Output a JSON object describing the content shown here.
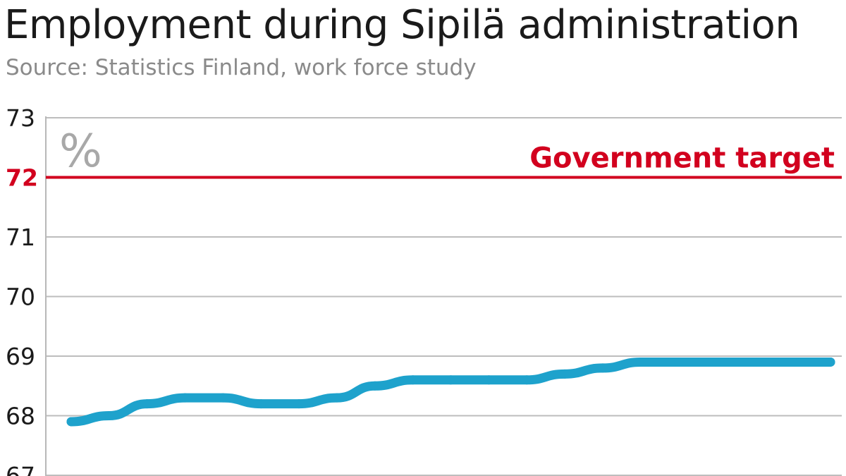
{
  "chart_data": {
    "type": "line",
    "title": "Employment during Sipilä administration",
    "subtitle": "Source: Statistics Finland, work force study",
    "ylabel": "%",
    "ylim": [
      67,
      73
    ],
    "yticks": [
      67,
      68,
      69,
      70,
      71,
      72,
      73
    ],
    "grid": true,
    "series": [
      {
        "values": [
          67.9,
          68.0,
          68.2,
          68.3,
          68.3,
          68.2,
          68.2,
          68.3,
          68.5,
          68.6,
          68.6,
          68.6,
          68.6,
          68.7,
          68.8,
          68.9,
          68.9,
          68.9,
          68.9,
          68.9,
          68.9
        ],
        "color": "#1ea2cc"
      }
    ],
    "reference_line": {
      "label": "Government target",
      "value": 72,
      "color": "#d2001e"
    }
  }
}
